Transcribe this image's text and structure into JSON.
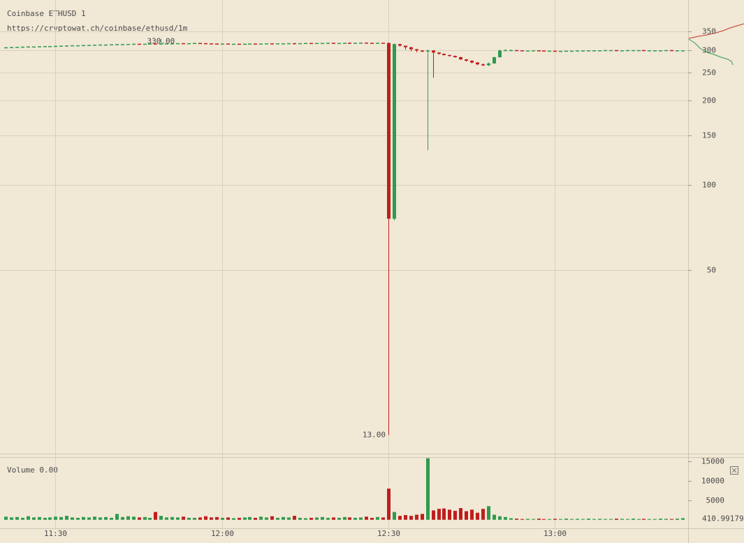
{
  "chart_data": {
    "type": "candlestick",
    "title": "Coinbase ETHUSD 1",
    "subtitle": "https://cryptowat.ch/coinbase/ethusd/1m",
    "x": [
      "11:21",
      "11:22",
      "11:23",
      "11:24",
      "11:25",
      "11:26",
      "11:27",
      "11:28",
      "11:29",
      "11:30",
      "11:31",
      "11:32",
      "11:33",
      "11:34",
      "11:35",
      "11:36",
      "11:37",
      "11:38",
      "11:39",
      "11:40",
      "11:41",
      "11:42",
      "11:43",
      "11:44",
      "11:45",
      "11:46",
      "11:47",
      "11:48",
      "11:49",
      "11:50",
      "11:51",
      "11:52",
      "11:53",
      "11:54",
      "11:55",
      "11:56",
      "11:57",
      "11:58",
      "11:59",
      "12:00",
      "12:01",
      "12:02",
      "12:03",
      "12:04",
      "12:05",
      "12:06",
      "12:07",
      "12:08",
      "12:09",
      "12:10",
      "12:11",
      "12:12",
      "12:13",
      "12:14",
      "12:15",
      "12:16",
      "12:17",
      "12:18",
      "12:19",
      "12:20",
      "12:21",
      "12:22",
      "12:23",
      "12:24",
      "12:25",
      "12:26",
      "12:27",
      "12:28",
      "12:29",
      "12:30",
      "12:31",
      "12:32",
      "12:33",
      "12:34",
      "12:35",
      "12:36",
      "12:37",
      "12:38",
      "12:39",
      "12:40",
      "12:41",
      "12:42",
      "12:43",
      "12:44",
      "12:45",
      "12:46",
      "12:47",
      "12:48",
      "12:49",
      "12:50",
      "12:51",
      "12:52",
      "12:53",
      "12:54",
      "12:55",
      "12:56",
      "12:57",
      "12:58",
      "12:59",
      "13:00",
      "13:01",
      "13:02",
      "13:03",
      "13:04",
      "13:05",
      "13:06",
      "13:07",
      "13:08",
      "13:09",
      "13:10",
      "13:11",
      "13:12",
      "13:13",
      "13:14",
      "13:15",
      "13:16",
      "13:17",
      "13:18",
      "13:19",
      "13:20",
      "13:21",
      "13:22",
      "13:23"
    ],
    "open": [
      307.5,
      308,
      308.5,
      309,
      309.5,
      310,
      310,
      310.5,
      311,
      311,
      311.5,
      312,
      312.5,
      313,
      313,
      313.5,
      314,
      314.5,
      315,
      315,
      315.5,
      316,
      316,
      316.5,
      317,
      316.5,
      317,
      317.5,
      317,
      317.5,
      318,
      318,
      318.5,
      318,
      318.5,
      319,
      318.5,
      318,
      317.5,
      317,
      317.5,
      317,
      317,
      316.5,
      317,
      317.5,
      317,
      317.5,
      318,
      317.5,
      318,
      318,
      318.5,
      318,
      318.5,
      319,
      318.5,
      319,
      319,
      319.5,
      319,
      319,
      319.5,
      319,
      319.5,
      320,
      319.5,
      319,
      319.5,
      319,
      76,
      316,
      312,
      308,
      303,
      300,
      299,
      300,
      295,
      292,
      289,
      287,
      284,
      279,
      276,
      272,
      268,
      266,
      270,
      284,
      300,
      301,
      301,
      300.5,
      300,
      300,
      300.5,
      300,
      299.5,
      299.5,
      299,
      299,
      299.5,
      299.5,
      300,
      300,
      300.5,
      300.5,
      300.5,
      301,
      301,
      300.5,
      300.5,
      301,
      301,
      301,
      300.5,
      300.5,
      300.5,
      300.5,
      301,
      300.5,
      300.5
    ],
    "high": [
      308,
      308.5,
      309,
      309.5,
      310,
      310,
      310.5,
      311,
      311,
      311.5,
      312,
      312.5,
      313,
      313,
      313.5,
      314,
      314.5,
      315,
      315,
      315.5,
      316,
      316,
      316.5,
      317,
      317,
      317,
      317.5,
      317.5,
      330,
      318,
      318,
      318.5,
      318.5,
      318.5,
      319,
      319,
      318.5,
      318,
      317.5,
      317.5,
      317.5,
      317,
      317,
      317,
      317.5,
      317.5,
      317.5,
      318,
      318,
      318,
      318,
      318.5,
      318.5,
      318.5,
      319,
      319,
      319,
      319,
      319.5,
      319.5,
      319,
      319.5,
      319.5,
      319.5,
      320,
      320,
      319.5,
      319.5,
      319.5,
      320,
      318,
      317,
      312,
      309,
      304,
      301,
      302,
      301,
      296,
      293,
      290,
      288,
      285,
      280,
      277,
      273,
      270,
      272,
      285,
      302,
      303,
      302,
      301,
      300.5,
      300,
      300.5,
      300.5,
      300,
      299.5,
      299.5,
      299,
      299.5,
      299.5,
      300,
      300,
      300.5,
      300.5,
      300.5,
      301,
      301,
      301,
      300.5,
      301,
      301,
      301,
      301,
      300.5,
      300.5,
      300.5,
      301,
      301,
      300.5,
      300.5
    ],
    "low": [
      307.5,
      308,
      308.5,
      309,
      309.5,
      310,
      310,
      310.5,
      311,
      311,
      311.5,
      312,
      312.5,
      313,
      313,
      313.5,
      314,
      314.5,
      315,
      315,
      315.5,
      316,
      316,
      316.5,
      316.5,
      316.5,
      317,
      317,
      317,
      317.5,
      318,
      318,
      318,
      318,
      318.5,
      318.5,
      318,
      317.5,
      317,
      317,
      317,
      317,
      316.5,
      316.5,
      317,
      317,
      317,
      317.5,
      317.5,
      317.5,
      318,
      318,
      318,
      318,
      318.5,
      318.5,
      318.5,
      319,
      319,
      319,
      319,
      319,
      319,
      319,
      319.5,
      319.5,
      319,
      319,
      319,
      13,
      75,
      310,
      302,
      298,
      296,
      296,
      133,
      240,
      290,
      288,
      286,
      283,
      278,
      274,
      270,
      266,
      264,
      264,
      269,
      283,
      299,
      300,
      300.5,
      300,
      300,
      300,
      300,
      299.5,
      299.5,
      299,
      299,
      299,
      299.5,
      299.5,
      300,
      300,
      300.5,
      300.5,
      300.5,
      301,
      300.5,
      300.5,
      300.5,
      301,
      301,
      300.5,
      300.5,
      300.5,
      300.5,
      300.5,
      300.5,
      300.5,
      300.5
    ],
    "close": [
      308,
      308.5,
      309,
      309.5,
      310,
      310,
      310.5,
      311,
      311,
      311.5,
      312,
      312.5,
      313,
      313,
      313.5,
      314,
      314.5,
      315,
      315,
      315.5,
      316,
      316,
      316.5,
      317,
      316.5,
      317,
      317.5,
      317,
      317.5,
      318,
      318,
      318.5,
      318,
      318.5,
      319,
      318.5,
      318,
      317.5,
      317,
      317.5,
      317,
      317,
      316.5,
      317,
      317.5,
      317,
      317.5,
      318,
      317.5,
      318,
      318,
      318.5,
      318,
      318.5,
      319,
      318.5,
      319,
      319,
      319.5,
      319,
      319,
      319.5,
      319,
      319.5,
      320,
      319.5,
      319,
      319.5,
      319,
      76,
      316,
      312,
      308,
      303,
      300,
      299,
      300,
      295,
      292,
      289,
      287,
      284,
      279,
      276,
      272,
      268,
      266,
      270,
      284,
      300,
      301,
      301,
      300.5,
      300,
      300,
      300.5,
      300,
      299.5,
      299.5,
      299,
      299,
      299.5,
      299.5,
      300,
      300,
      300.5,
      300.5,
      300.5,
      301,
      301,
      300.5,
      300.5,
      301,
      301,
      301,
      300.5,
      300.5,
      300.5,
      300.5,
      301,
      300.5,
      300.5,
      300.5
    ],
    "up_color": "#2e9b4e",
    "down_color": "#bf1e1e",
    "log_scale": true,
    "ylim": [
      11.3,
      453
    ],
    "yticks": [
      50,
      100,
      150,
      200,
      250,
      300,
      350
    ],
    "xlim": [
      "11:20",
      "13:24"
    ],
    "xticks": [
      "11:30",
      "12:00",
      "12:30",
      "13:00"
    ],
    "grid": true,
    "annotations": [
      {
        "x": "11:49",
        "value": 330,
        "label": "330.00"
      },
      {
        "x": "12:30",
        "value": 13,
        "label": "13.00"
      }
    ],
    "volume": {
      "title": "Volume 0.00",
      "values": [
        800,
        600,
        700,
        500,
        900,
        600,
        700,
        500,
        600,
        800,
        700,
        1000,
        600,
        500,
        700,
        600,
        800,
        600,
        700,
        500,
        1500,
        700,
        900,
        800,
        600,
        700,
        500,
        2000,
        1000,
        600,
        700,
        600,
        800,
        500,
        500,
        600,
        900,
        600,
        700,
        500,
        600,
        400,
        500,
        600,
        700,
        500,
        800,
        600,
        900,
        500,
        700,
        600,
        1000,
        500,
        400,
        500,
        600,
        700,
        500,
        600,
        500,
        700,
        600,
        500,
        600,
        800,
        500,
        700,
        600,
        8000,
        2000,
        1000,
        1200,
        1000,
        1300,
        1500,
        15800,
        2400,
        2800,
        2900,
        2600,
        2300,
        3000,
        2200,
        2600,
        1800,
        2800,
        3500,
        1300,
        900,
        700,
        400,
        300,
        200,
        250,
        200,
        300,
        200,
        200,
        250,
        200,
        300,
        200,
        250,
        200,
        300,
        200,
        250,
        200,
        200,
        300,
        250,
        200,
        300,
        200,
        250,
        200,
        200,
        300,
        250,
        200,
        300,
        410.99179
      ],
      "ylim": [
        -2200,
        15900
      ],
      "yticks": [
        5000,
        10000,
        15000
      ]
    }
  }
}
